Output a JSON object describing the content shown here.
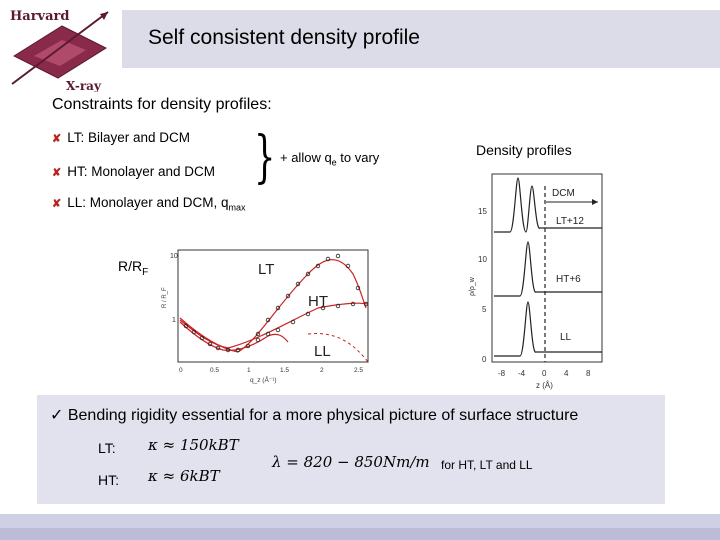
{
  "logo": {
    "text_top": "Harvard",
    "text_bottom": "X-ray"
  },
  "title": "Self consistent density profile",
  "constraints": {
    "heading": "Constraints for density profiles:",
    "items": [
      {
        "label": "LT: Bilayer and DCM"
      },
      {
        "label": "HT: Monolayer and DCM"
      },
      {
        "label": "LL: Monolayer and DCM, q",
        "sub": "max"
      }
    ],
    "allow_prefix": "+ allow q",
    "allow_sub": "e",
    "allow_suffix": " to vary"
  },
  "left_plot": {
    "rrf_label": "R/R",
    "rrf_sub": "F",
    "curve_labels": [
      "LT",
      "HT",
      "LL"
    ],
    "y_ticks": [
      "10",
      "1"
    ],
    "x_ticks": [
      "0",
      "0.5",
      "1",
      "1.5",
      "2",
      "2.5"
    ],
    "y_axis_label": "R / R_F",
    "x_axis_label": "q_z (Å⁻¹)"
  },
  "right_plot": {
    "title": "Density profiles",
    "dcm_label": "DCM",
    "curve_labels": [
      "LT+12",
      "HT+6",
      "LL"
    ],
    "y_ticks": [
      "0",
      "5",
      "10",
      "15"
    ],
    "x_ticks": [
      "-8",
      "-4",
      "0",
      "4",
      "8"
    ],
    "y_axis_label": "ρ/ρ_w",
    "x_axis_label": "z (Å)"
  },
  "bottom": {
    "check": "✓",
    "statement": "Bending rigidity essential for a more physical picture of surface structure",
    "lt_label": "LT:",
    "ht_label": "HT:",
    "lt_kappa": "κ ≈ 150kBT",
    "ht_kappa": "κ ≈ 6kBT",
    "lambda": "λ = 820 − 850Nm/m",
    "lambda_suffix": "for HT, LT and LL"
  }
}
